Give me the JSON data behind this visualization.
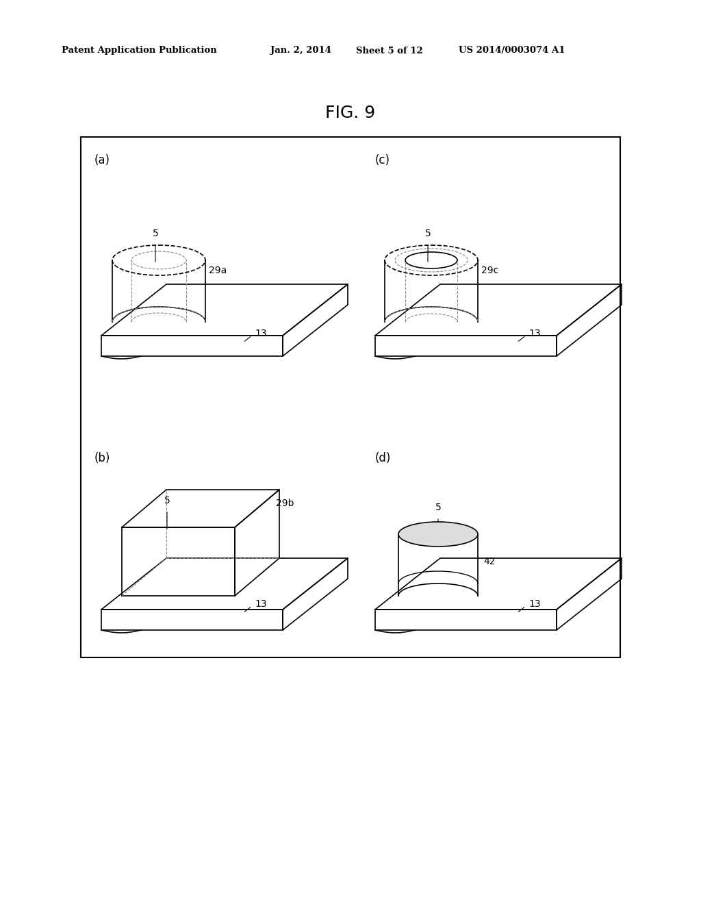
{
  "bg_color": "#ffffff",
  "header_text": "Patent Application Publication",
  "header_date": "Jan. 2, 2014",
  "header_sheet": "Sheet 5 of 12",
  "header_patent": "US 2014/0003074 A1",
  "fig_title": "FIG. 9",
  "line_color": "#000000",
  "dashed_color": "#888888",
  "lw": 1.2,
  "lw_thin": 0.8
}
